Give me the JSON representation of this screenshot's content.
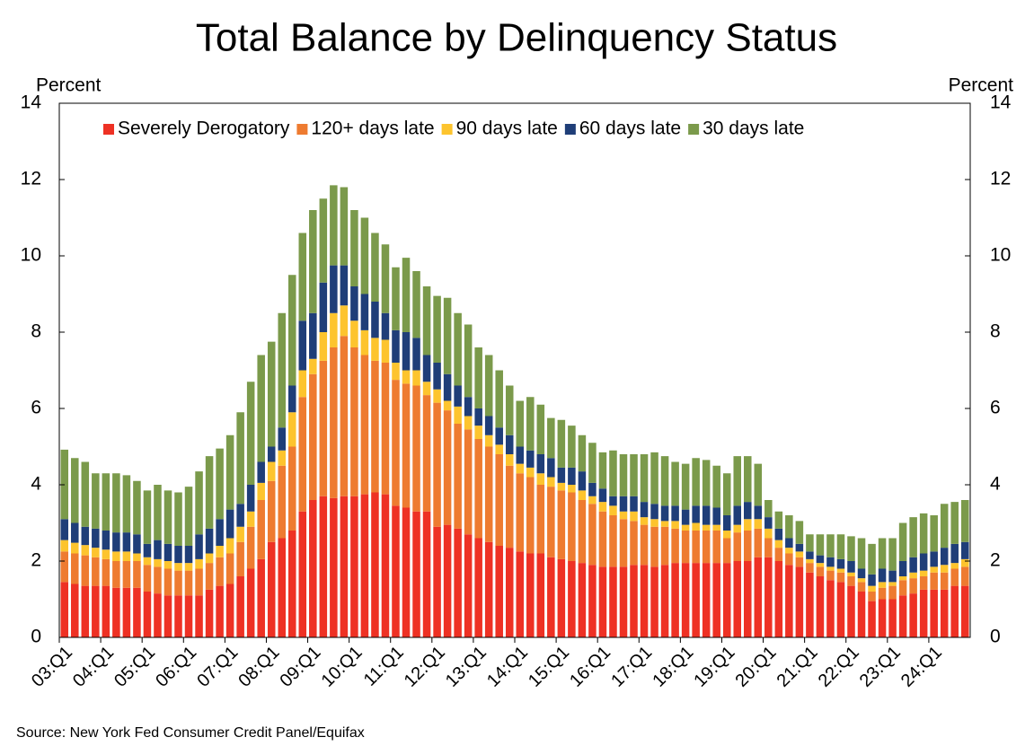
{
  "chart_data": {
    "type": "stacked-bar",
    "title": "Total Balance by Delinquency Status",
    "ylabel": "Percent",
    "y2label": "Percent",
    "source": "Source: New York Fed Consumer Credit Panel/Equifax",
    "categories": [
      "03:Q1",
      null,
      null,
      null,
      "04:Q1",
      null,
      null,
      null,
      "05:Q1",
      null,
      null,
      null,
      "06:Q1",
      null,
      null,
      null,
      "07:Q1",
      null,
      null,
      null,
      "08:Q1",
      null,
      null,
      null,
      "09:Q1",
      null,
      null,
      null,
      "10:Q1",
      null,
      null,
      null,
      "11:Q1",
      null,
      null,
      null,
      "12:Q1",
      null,
      null,
      null,
      "13:Q1",
      null,
      null,
      null,
      "14:Q1",
      null,
      null,
      null,
      "15:Q1",
      null,
      null,
      null,
      "16:Q1",
      null,
      null,
      null,
      "17:Q1",
      null,
      null,
      null,
      "18:Q1",
      null,
      null,
      null,
      "19:Q1",
      null,
      null,
      null,
      "20:Q1",
      null,
      null,
      null,
      "21:Q1",
      null,
      null,
      null,
      "22:Q1",
      null,
      null,
      null,
      "23:Q1",
      null,
      null,
      null,
      "24:Q1",
      null,
      null,
      null
    ],
    "series": [
      {
        "name": "Severely Derogatory",
        "color": "#ee3124",
        "values": [
          1.45,
          1.4,
          1.35,
          1.35,
          1.35,
          1.3,
          1.3,
          1.3,
          1.2,
          1.15,
          1.1,
          1.1,
          1.1,
          1.1,
          1.25,
          1.35,
          1.4,
          1.6,
          1.8,
          2.05,
          2.5,
          2.6,
          2.8,
          3.3,
          3.6,
          3.7,
          3.65,
          3.7,
          3.7,
          3.75,
          3.8,
          3.75,
          3.45,
          3.4,
          3.3,
          3.3,
          2.9,
          2.95,
          2.85,
          2.7,
          2.6,
          2.5,
          2.4,
          2.35,
          2.25,
          2.2,
          2.2,
          2.1,
          2.05,
          2.0,
          1.95,
          1.9,
          1.85,
          1.85,
          1.85,
          1.9,
          1.9,
          1.85,
          1.9,
          1.95,
          1.95,
          1.95,
          1.95,
          1.95,
          1.95,
          2.0,
          2.0,
          2.1,
          2.1,
          2.0,
          1.9,
          1.85,
          1.7,
          1.6,
          1.5,
          1.45,
          1.35,
          1.2,
          0.95,
          1.0,
          1.0,
          1.1,
          1.15,
          1.25,
          1.25,
          1.25,
          1.35,
          1.35
        ]
      },
      {
        "name": "120+ days late",
        "color": "#ee7b30",
        "values": [
          0.8,
          0.8,
          0.8,
          0.75,
          0.7,
          0.7,
          0.7,
          0.7,
          0.7,
          0.7,
          0.7,
          0.65,
          0.65,
          0.7,
          0.7,
          0.75,
          0.8,
          0.9,
          1.1,
          1.55,
          1.6,
          1.9,
          2.2,
          3.0,
          3.3,
          3.55,
          3.95,
          4.2,
          3.9,
          3.65,
          3.45,
          3.45,
          3.3,
          3.25,
          3.3,
          3.05,
          3.25,
          3.0,
          2.75,
          2.75,
          2.6,
          2.5,
          2.4,
          2.15,
          2.05,
          2.0,
          1.8,
          1.85,
          1.8,
          1.8,
          1.65,
          1.6,
          1.45,
          1.35,
          1.25,
          1.15,
          1.05,
          1.05,
          1.0,
          0.9,
          0.85,
          0.85,
          0.85,
          0.85,
          0.65,
          0.75,
          0.8,
          0.75,
          0.5,
          0.35,
          0.3,
          0.25,
          0.25,
          0.25,
          0.25,
          0.25,
          0.25,
          0.25,
          0.25,
          0.3,
          0.35,
          0.4,
          0.4,
          0.35,
          0.45,
          0.45,
          0.45,
          0.5
        ]
      },
      {
        "name": "90 days late",
        "color": "#fdc42e",
        "values": [
          0.3,
          0.28,
          0.27,
          0.25,
          0.25,
          0.25,
          0.25,
          0.2,
          0.2,
          0.2,
          0.2,
          0.2,
          0.2,
          0.25,
          0.25,
          0.3,
          0.4,
          0.4,
          0.4,
          0.45,
          0.5,
          0.4,
          0.9,
          0.7,
          0.4,
          0.75,
          0.9,
          0.8,
          0.7,
          0.65,
          0.6,
          0.6,
          0.45,
          0.35,
          0.4,
          0.35,
          0.35,
          0.25,
          0.45,
          0.35,
          0.35,
          0.3,
          0.25,
          0.3,
          0.25,
          0.25,
          0.3,
          0.25,
          0.2,
          0.2,
          0.25,
          0.2,
          0.25,
          0.25,
          0.2,
          0.25,
          0.2,
          0.2,
          0.15,
          0.2,
          0.15,
          0.2,
          0.15,
          0.15,
          0.2,
          0.2,
          0.3,
          0.25,
          0.25,
          0.2,
          0.15,
          0.15,
          0.1,
          0.1,
          0.1,
          0.1,
          0.1,
          0.1,
          0.15,
          0.15,
          0.1,
          0.1,
          0.15,
          0.15,
          0.15,
          0.2,
          0.15,
          0.2
        ]
      },
      {
        "name": "60 days late",
        "color": "#1f3e78",
        "values": [
          0.55,
          0.52,
          0.48,
          0.5,
          0.5,
          0.5,
          0.5,
          0.5,
          0.35,
          0.5,
          0.45,
          0.45,
          0.45,
          0.65,
          0.65,
          0.7,
          0.75,
          0.6,
          0.7,
          0.55,
          0.4,
          0.6,
          0.7,
          1.3,
          1.2,
          1.3,
          1.25,
          1.05,
          0.9,
          0.95,
          0.95,
          0.7,
          0.85,
          1.0,
          0.85,
          0.7,
          0.7,
          0.7,
          0.55,
          0.5,
          0.45,
          0.5,
          0.45,
          0.5,
          0.45,
          0.45,
          0.5,
          0.5,
          0.4,
          0.45,
          0.5,
          0.35,
          0.35,
          0.25,
          0.4,
          0.4,
          0.4,
          0.4,
          0.4,
          0.4,
          0.4,
          0.45,
          0.5,
          0.45,
          0.4,
          0.5,
          0.45,
          0.35,
          0.3,
          0.3,
          0.25,
          0.2,
          0.2,
          0.2,
          0.25,
          0.25,
          0.3,
          0.25,
          0.3,
          0.35,
          0.3,
          0.4,
          0.4,
          0.45,
          0.4,
          0.45,
          0.5,
          0.45
        ]
      },
      {
        "name": "30 days late",
        "color": "#7b9a4b",
        "values": [
          1.82,
          1.7,
          1.7,
          1.45,
          1.5,
          1.55,
          1.5,
          1.4,
          1.4,
          1.45,
          1.4,
          1.4,
          1.55,
          1.65,
          1.9,
          1.85,
          1.95,
          2.4,
          2.7,
          2.8,
          2.75,
          3.0,
          2.9,
          2.3,
          2.7,
          2.2,
          2.1,
          2.05,
          2.0,
          2.0,
          1.8,
          1.8,
          1.65,
          1.95,
          1.75,
          1.8,
          1.75,
          2.0,
          1.9,
          1.9,
          1.6,
          1.6,
          1.5,
          1.3,
          1.2,
          1.4,
          1.3,
          1.05,
          1.25,
          1.1,
          0.95,
          1.05,
          0.95,
          1.2,
          1.1,
          1.1,
          1.25,
          1.35,
          1.3,
          1.15,
          1.2,
          1.25,
          1.2,
          1.1,
          1.1,
          1.3,
          1.2,
          1.1,
          0.45,
          0.45,
          0.6,
          0.6,
          0.45,
          0.55,
          0.6,
          0.65,
          0.65,
          0.8,
          0.8,
          0.8,
          0.85,
          1.0,
          1.05,
          1.05,
          0.95,
          1.15,
          1.1,
          1.1
        ]
      }
    ],
    "ylim": [
      0,
      14
    ],
    "yticks": [
      0,
      2,
      4,
      6,
      8,
      10,
      12,
      14
    ],
    "y2lim": [
      0,
      14
    ],
    "y2ticks": [
      0,
      2,
      4,
      6,
      8,
      10,
      12,
      14
    ],
    "legend": "top"
  }
}
